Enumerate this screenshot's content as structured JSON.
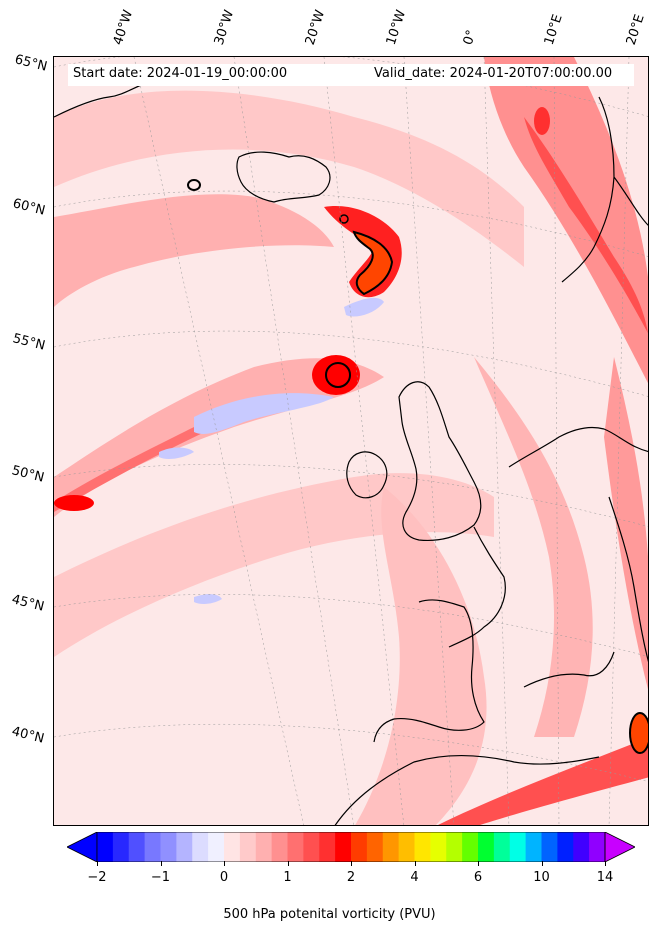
{
  "header": {
    "start_date": "Start date: 2024-01-19_00:00:00",
    "valid_date": "Valid_date: 2024-01-20T07:00:00.00"
  },
  "map": {
    "projection": "rotated north-polar (Lambert-like)",
    "region": "North Atlantic / Western Europe",
    "field": "500 hPa potential vorticity",
    "lat_labels": [
      "65°N",
      "60°N",
      "55°N",
      "50°N",
      "45°N",
      "40°N"
    ],
    "lon_labels": [
      "40°W",
      "30°W",
      "20°W",
      "10°W",
      "0°",
      "10°E",
      "20°E"
    ],
    "features": [
      {
        "name": "PV maximum south of Iceland",
        "level_pvu": 3,
        "color": "#ff4500"
      },
      {
        "name": "PV maximum west of Ireland",
        "level_pvu": 2.5,
        "color": "#ff0000"
      },
      {
        "name": "PV streamer over Scandinavia",
        "level_pvu": 2,
        "color": "#ff2020"
      },
      {
        "name": "PV maximum near Sardinia/Tyrrhenian",
        "level_pvu": 3,
        "color": "#ff4500"
      },
      {
        "name": "Negative PV band (mid-Atlantic)",
        "level_pvu": -0.5,
        "color": "#c8caff"
      }
    ],
    "background_color": "#fde8e8",
    "coastline_color": "#000000"
  },
  "colorbar": {
    "label": "500 hPa potenital vorticity (PVU)",
    "tick_labels": [
      "−2",
      "−1",
      "0",
      "1",
      "2",
      "4",
      "6",
      "10",
      "14"
    ],
    "colors": [
      "#0000ff",
      "#2828ff",
      "#5050ff",
      "#7878ff",
      "#9090ff",
      "#b4b4ff",
      "#dcdcff",
      "#f0f0ff",
      "#ffe4e4",
      "#ffcaca",
      "#ffb0b0",
      "#ff9090",
      "#ff7070",
      "#ff5050",
      "#ff3030",
      "#ff0000",
      "#ff3c00",
      "#ff6400",
      "#ff9600",
      "#ffbe00",
      "#ffe600",
      "#e6ff00",
      "#b4ff00",
      "#64ff00",
      "#00ff30",
      "#00ff9a",
      "#00ffe6",
      "#00b4ff",
      "#0064ff",
      "#0020ff",
      "#4000ff",
      "#9000ff"
    ],
    "extend_low_color": "#0000ff",
    "extend_high_color": "#c800ff"
  }
}
